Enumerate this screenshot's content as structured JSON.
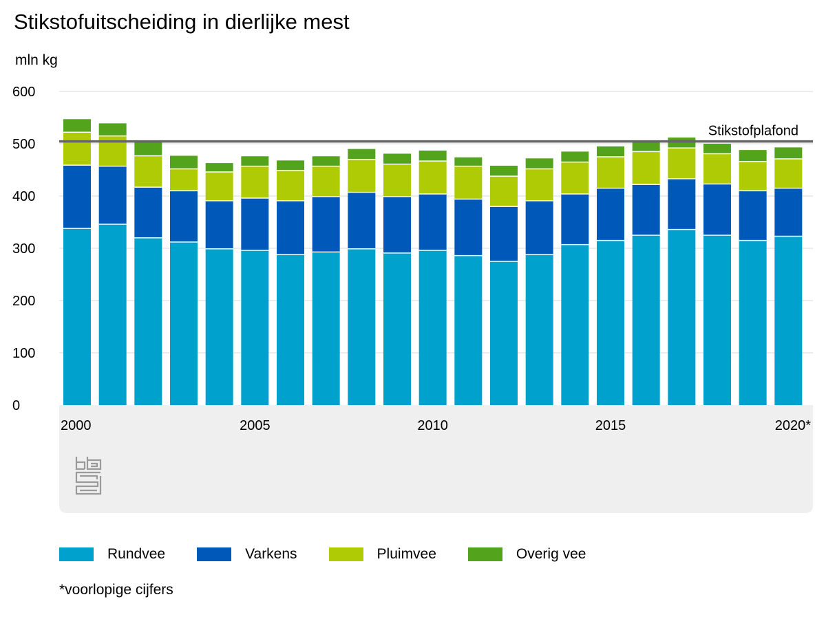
{
  "chart_data": {
    "type": "bar",
    "stacked": true,
    "title": "Stikstofuitscheiding in dierlijke mest",
    "ylabel": "mln kg",
    "xlabel": "",
    "ylim": [
      0,
      600
    ],
    "yticks": [
      "0",
      "100",
      "200",
      "300",
      "400",
      "500",
      "600"
    ],
    "categories": [
      "2000",
      "2001",
      "2002",
      "2003",
      "2004",
      "2005",
      "2006",
      "2007",
      "2008",
      "2009",
      "2010",
      "2011",
      "2012",
      "2013",
      "2014",
      "2015",
      "2016",
      "2017",
      "2018",
      "2019",
      "2020*"
    ],
    "xtick_labels": [
      {
        "index": 0,
        "label": "2000"
      },
      {
        "index": 5,
        "label": "2005"
      },
      {
        "index": 10,
        "label": "2010"
      },
      {
        "index": 15,
        "label": "2015"
      },
      {
        "index": 20,
        "label": "2020*"
      }
    ],
    "series": [
      {
        "name": "Rundvee",
        "color": "#00a1cd",
        "values": [
          338,
          346,
          320,
          312,
          299,
          296,
          288,
          293,
          299,
          291,
          296,
          286,
          275,
          288,
          307,
          315,
          325,
          336,
          325,
          315,
          323
        ]
      },
      {
        "name": "Varkens",
        "color": "#0058b8",
        "values": [
          121,
          111,
          97,
          98,
          92,
          100,
          103,
          106,
          108,
          108,
          108,
          108,
          105,
          103,
          97,
          100,
          97,
          97,
          98,
          95,
          92
        ]
      },
      {
        "name": "Pluimvee",
        "color": "#afcb05",
        "values": [
          63,
          58,
          60,
          42,
          55,
          61,
          58,
          58,
          63,
          62,
          63,
          63,
          58,
          61,
          61,
          60,
          63,
          59,
          58,
          56,
          56
        ]
      },
      {
        "name": "Overig vee",
        "color": "#53a31d",
        "values": [
          25,
          24,
          28,
          25,
          17,
          19,
          19,
          19,
          20,
          20,
          20,
          17,
          20,
          20,
          20,
          20,
          21,
          20,
          19,
          22,
          22
        ]
      }
    ],
    "reference_line": {
      "label": "Stikstofplafond",
      "value": 504.5,
      "color": "#666666"
    },
    "grid": true,
    "legend_position": "bottom",
    "footnote": "*voorlopige cijfers"
  }
}
